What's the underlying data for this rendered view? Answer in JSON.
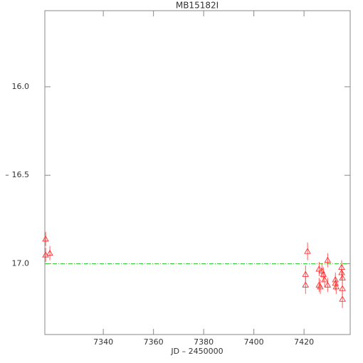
{
  "chart_data": {
    "type": "scatter",
    "title": "MB15182I",
    "xlabel": "JD – 2450000",
    "ylabel": "–",
    "xlim": [
      7316.7,
      7438.4
    ],
    "ylim": [
      17.4,
      15.57
    ],
    "xticks": [
      7340,
      7360,
      7380,
      7400,
      7420
    ],
    "yticks": [
      {
        "value": 16.0,
        "label": "16.0"
      },
      {
        "value": 16.5,
        "label": "16.5"
      },
      {
        "value": 17.0,
        "label": "17.0"
      }
    ],
    "baseline": 17.0,
    "baseline_color": "#33cc33",
    "series": [
      {
        "color": "#ff3333",
        "x": [
          7317.0,
          7317.0,
          7318.7,
          7420.6,
          7420.6,
          7421.4,
          7426.0,
          7426.0,
          7426.5,
          7427.1,
          7427.7,
          7428.2,
          7429.4,
          7429.4,
          7432.5,
          7432.5,
          7432.8,
          7435.0,
          7435.0,
          7435.3,
          7435.3,
          7435.3
        ],
        "values": [
          16.86,
          16.95,
          16.94,
          17.06,
          17.12,
          16.93,
          17.03,
          17.12,
          17.13,
          17.04,
          17.06,
          17.09,
          16.98,
          17.12,
          17.09,
          17.11,
          17.13,
          17.02,
          17.05,
          17.08,
          17.14,
          17.2
        ],
        "errors": [
          0.04,
          0.04,
          0.04,
          0.05,
          0.05,
          0.05,
          0.04,
          0.04,
          0.04,
          0.04,
          0.04,
          0.04,
          0.04,
          0.04,
          0.04,
          0.04,
          0.04,
          0.04,
          0.04,
          0.04,
          0.04,
          0.05
        ]
      }
    ]
  }
}
